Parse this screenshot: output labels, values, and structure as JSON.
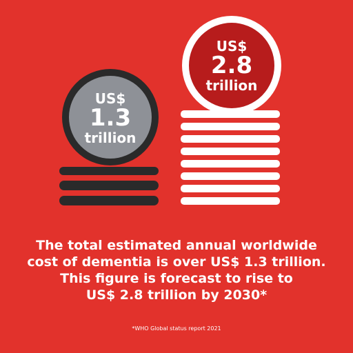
{
  "coin_small": {
    "currency": "US$",
    "amount": "1.3",
    "unit": "trillion"
  },
  "coin_large": {
    "currency": "US$",
    "amount": "2.8",
    "unit": "trillion"
  },
  "caption": {
    "line1": "The total estimated annual worldwide",
    "line2": "cost of dementia is over US$ 1.3 trillion.",
    "line3": "This figure is forecast to rise to",
    "line4": "US$ 2.8 trillion by 2030*"
  },
  "footnote": "*WHO Global status report 2021",
  "colors": {
    "background": "#e2322c",
    "coin_dark": "#2a2a2a",
    "coin_grey": "#8e9197",
    "coin_red": "#b71c1c",
    "white": "#ffffff"
  }
}
